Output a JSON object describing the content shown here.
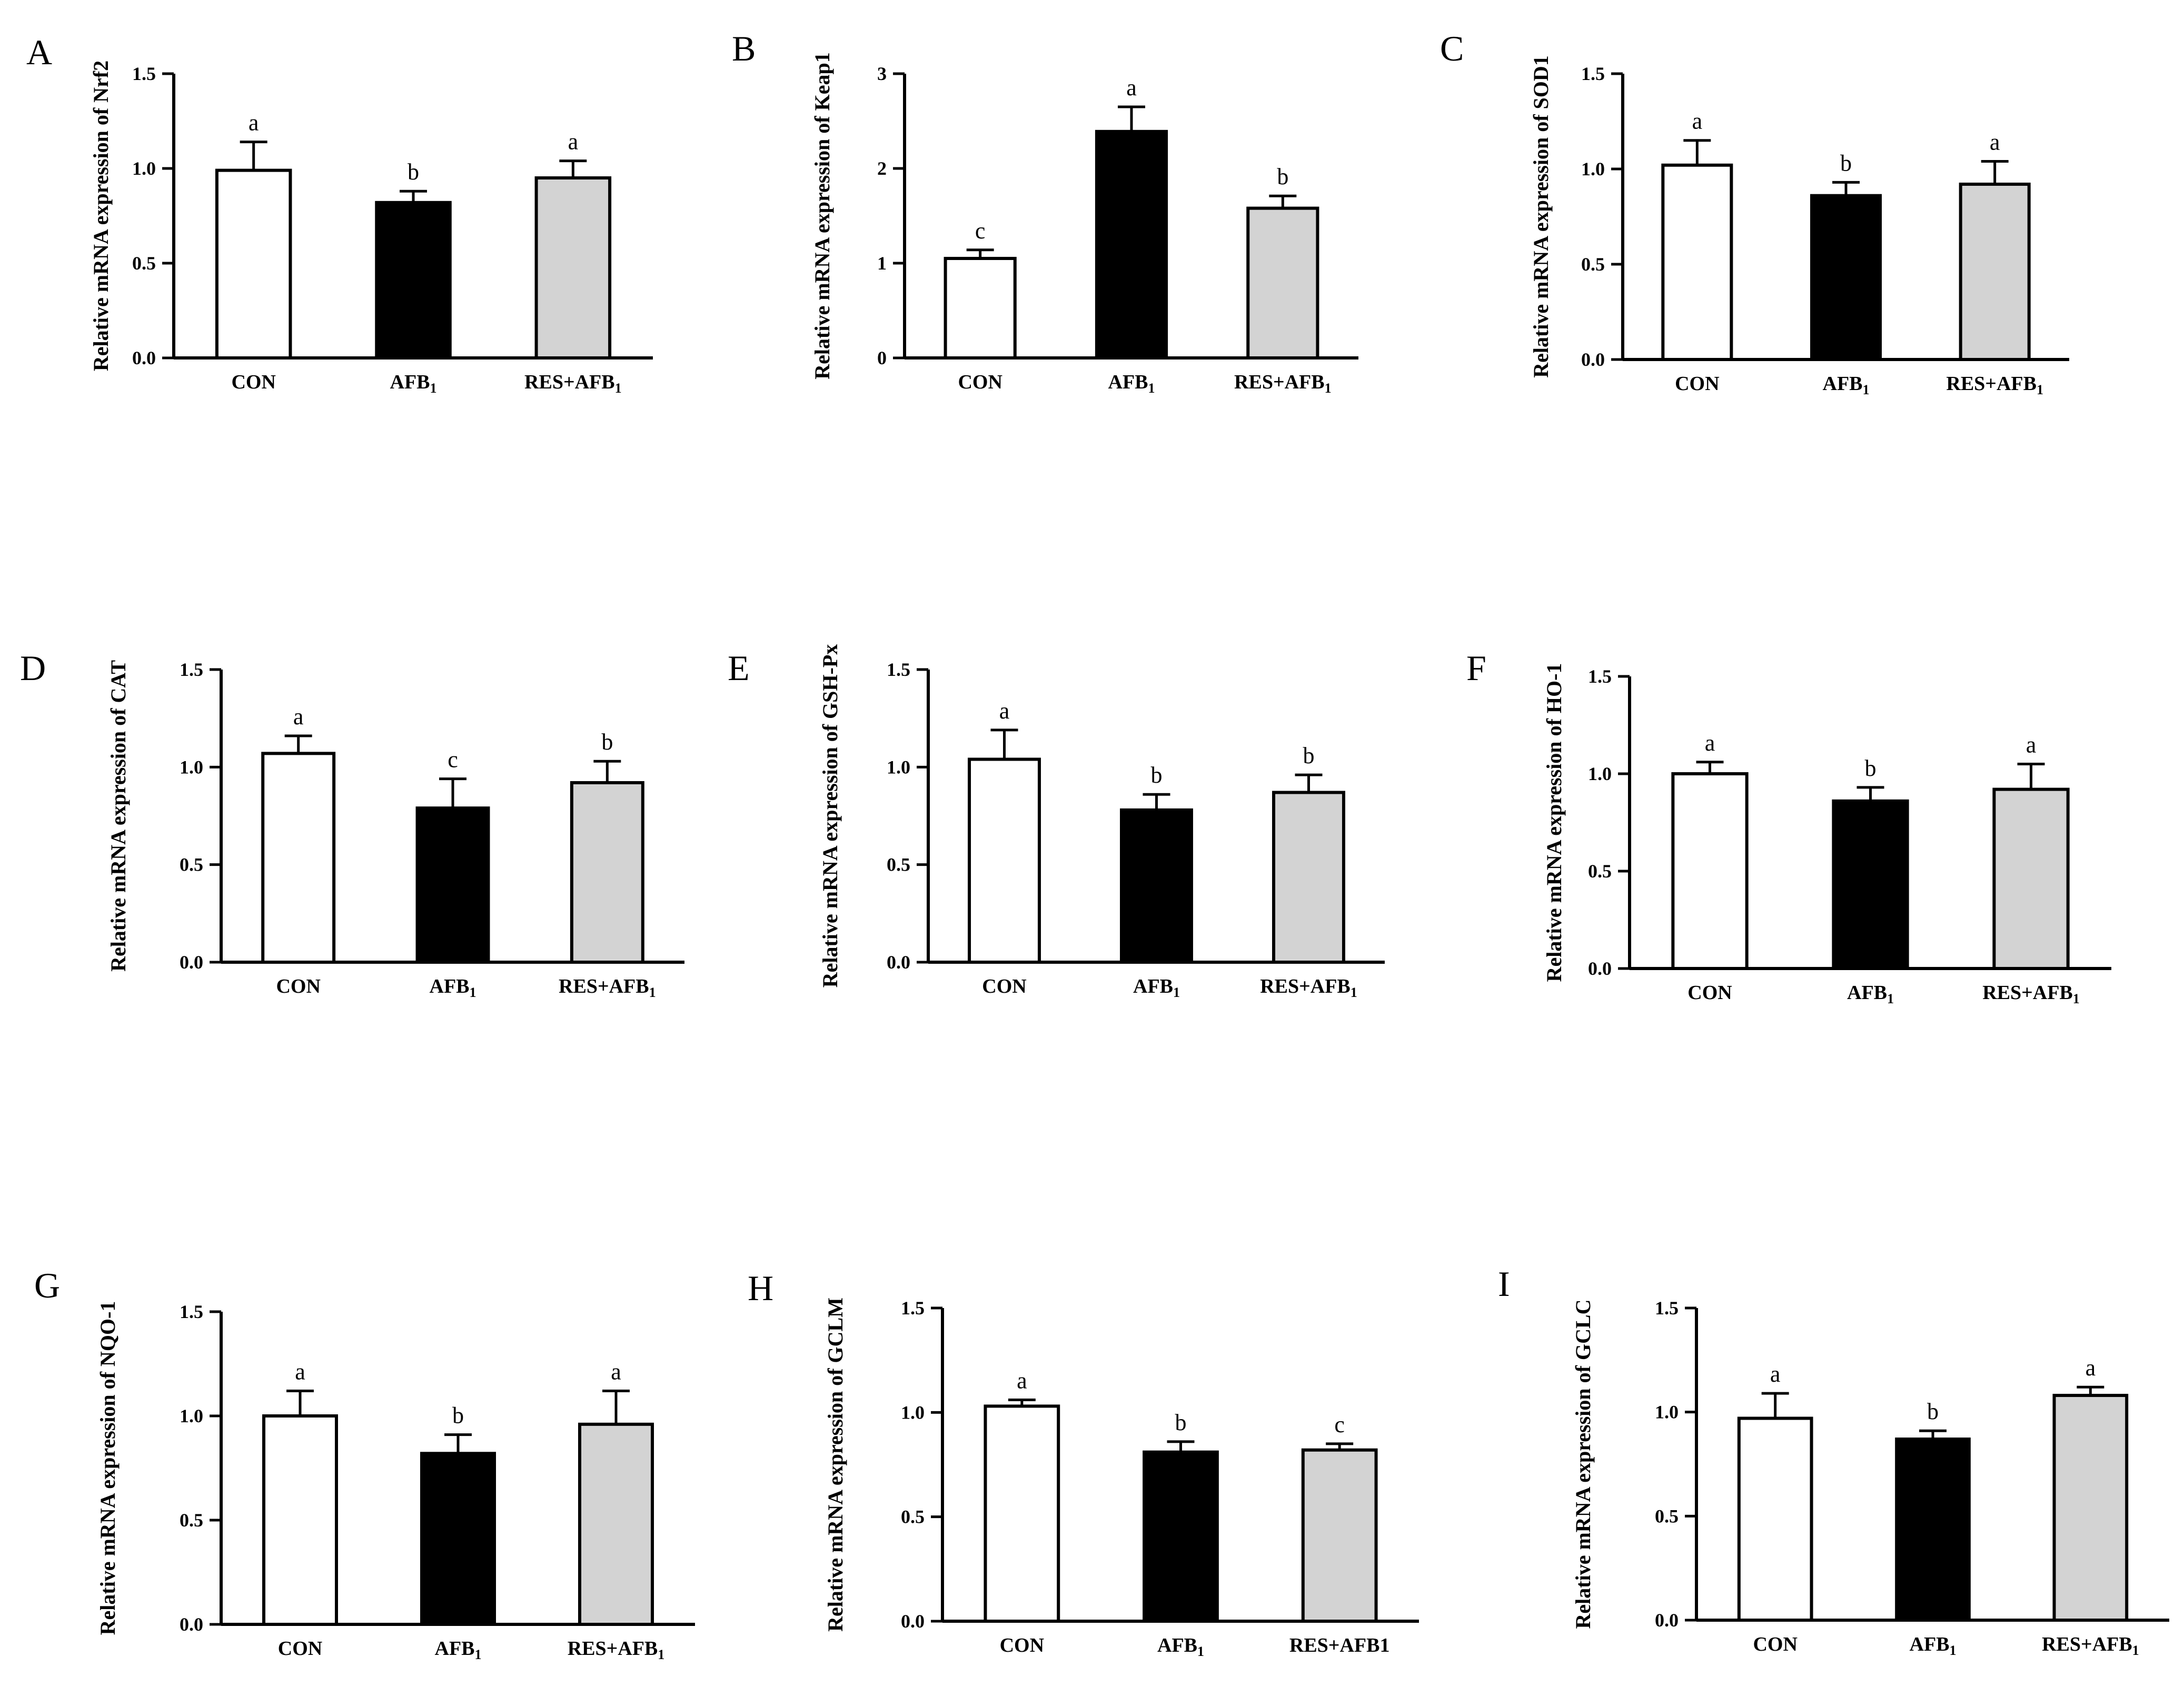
{
  "figure": {
    "panels": [
      "A",
      "B",
      "C",
      "D",
      "E",
      "F",
      "G",
      "H",
      "I"
    ]
  },
  "colors": {
    "CON": "#ffffff",
    "AFB1": "#000000",
    "RES_AFB1": "#d3d3d3",
    "axis": "#000000"
  },
  "chart_data": [
    {
      "panel": "A",
      "type": "bar",
      "title": "",
      "ylabel": "Relative mRNA expression of Nrf2",
      "xlabel": "",
      "categories": [
        "CON",
        "AFB1",
        "RES+AFB1"
      ],
      "category_labels": [
        {
          "main": "CON",
          "sub": ""
        },
        {
          "main": "AFB",
          "sub": "1"
        },
        {
          "main": "RES+AFB",
          "sub": "1"
        }
      ],
      "values": [
        0.99,
        0.82,
        0.95
      ],
      "errors": [
        0.15,
        0.06,
        0.09
      ],
      "significance": [
        "a",
        "b",
        "a"
      ],
      "ylim": [
        0,
        1.5
      ],
      "yticks": [
        0,
        0.5,
        1.0,
        1.5
      ],
      "ytick_labels": [
        "0.0",
        "0.5",
        "1.0",
        "1.5"
      ]
    },
    {
      "panel": "B",
      "type": "bar",
      "title": "",
      "ylabel": "Relative mRNA expression of Keap1",
      "xlabel": "",
      "categories": [
        "CON",
        "AFB1",
        "RES+AFB1"
      ],
      "category_labels": [
        {
          "main": "CON",
          "sub": ""
        },
        {
          "main": "AFB",
          "sub": "1"
        },
        {
          "main": "RES+AFB",
          "sub": "1"
        }
      ],
      "values": [
        1.05,
        2.39,
        1.58
      ],
      "errors": [
        0.09,
        0.26,
        0.13
      ],
      "significance": [
        "c",
        "a",
        "b"
      ],
      "ylim": [
        0,
        3
      ],
      "yticks": [
        0,
        1,
        2,
        3
      ],
      "ytick_labels": [
        "0",
        "1",
        "2",
        "3"
      ]
    },
    {
      "panel": "C",
      "type": "bar",
      "title": "",
      "ylabel": "Relative mRNA expression of SOD1",
      "xlabel": "",
      "categories": [
        "CON",
        "AFB1",
        "RES+AFB1"
      ],
      "category_labels": [
        {
          "main": "CON",
          "sub": ""
        },
        {
          "main": "AFB",
          "sub": "1"
        },
        {
          "main": "RES+AFB",
          "sub": "1"
        }
      ],
      "values": [
        1.02,
        0.86,
        0.92
      ],
      "errors": [
        0.13,
        0.07,
        0.12
      ],
      "significance": [
        "a",
        "b",
        "a"
      ],
      "ylim": [
        0,
        1.5
      ],
      "yticks": [
        0,
        0.5,
        1.0,
        1.5
      ],
      "ytick_labels": [
        "0.0",
        "0.5",
        "1.0",
        "1.5"
      ]
    },
    {
      "panel": "D",
      "type": "bar",
      "title": "",
      "ylabel": "Relative mRNA expression of CAT",
      "xlabel": "",
      "categories": [
        "CON",
        "AFB1",
        "RES+AFB1"
      ],
      "category_labels": [
        {
          "main": "CON",
          "sub": ""
        },
        {
          "main": "AFB",
          "sub": "1"
        },
        {
          "main": "RES+AFB",
          "sub": "1"
        }
      ],
      "values": [
        1.07,
        0.79,
        0.92
      ],
      "errors": [
        0.09,
        0.15,
        0.11
      ],
      "significance": [
        "a",
        "c",
        "b"
      ],
      "ylim": [
        0,
        1.5
      ],
      "yticks": [
        0,
        0.5,
        1.0,
        1.5
      ],
      "ytick_labels": [
        "0.0",
        "0.5",
        "1.0",
        "1.5"
      ]
    },
    {
      "panel": "E",
      "type": "bar",
      "title": "",
      "ylabel": "Relative mRNA expression of GSH-Px",
      "xlabel": "",
      "categories": [
        "CON",
        "AFB1",
        "RES+AFB1"
      ],
      "category_labels": [
        {
          "main": "CON",
          "sub": ""
        },
        {
          "main": "AFB",
          "sub": "1"
        },
        {
          "main": "RES+AFB",
          "sub": "1"
        }
      ],
      "values": [
        1.04,
        0.78,
        0.87
      ],
      "errors": [
        0.15,
        0.08,
        0.09
      ],
      "significance": [
        "a",
        "b",
        "b"
      ],
      "ylim": [
        0,
        1.5
      ],
      "yticks": [
        0,
        0.5,
        1.0,
        1.5
      ],
      "ytick_labels": [
        "0.0",
        "0.5",
        "1.0",
        "1.5"
      ]
    },
    {
      "panel": "F",
      "type": "bar",
      "title": "",
      "ylabel": "Relative mRNA expression of HO-1",
      "xlabel": "",
      "categories": [
        "CON",
        "AFB1",
        "RES+AFB1"
      ],
      "category_labels": [
        {
          "main": "CON",
          "sub": ""
        },
        {
          "main": "AFB",
          "sub": "1"
        },
        {
          "main": "RES+AFB",
          "sub": "1"
        }
      ],
      "values": [
        1.0,
        0.86,
        0.92
      ],
      "errors": [
        0.06,
        0.07,
        0.13
      ],
      "significance": [
        "a",
        "b",
        "a"
      ],
      "ylim": [
        0,
        1.5
      ],
      "yticks": [
        0,
        0.5,
        1.0,
        1.5
      ],
      "ytick_labels": [
        "0.0",
        "0.5",
        "1.0",
        "1.5"
      ]
    },
    {
      "panel": "G",
      "type": "bar",
      "title": "",
      "ylabel": "Relative mRNA expression of NQO-1",
      "xlabel": "",
      "categories": [
        "CON",
        "AFB1",
        "RES+AFB1"
      ],
      "category_labels": [
        {
          "main": "CON",
          "sub": ""
        },
        {
          "main": "AFB",
          "sub": "1"
        },
        {
          "main": "RES+AFB",
          "sub": "1"
        }
      ],
      "values": [
        1.0,
        0.82,
        0.96
      ],
      "errors": [
        0.12,
        0.09,
        0.16
      ],
      "significance": [
        "a",
        "b",
        "a"
      ],
      "ylim": [
        0,
        1.5
      ],
      "yticks": [
        0,
        0.5,
        1.0,
        1.5
      ],
      "ytick_labels": [
        "0.0",
        "0.5",
        "1.0",
        "1.5"
      ]
    },
    {
      "panel": "H",
      "type": "bar",
      "title": "",
      "ylabel": "Relative mRNA expression of GCLM",
      "xlabel": "",
      "categories": [
        "CON",
        "AFB1",
        "RES+AFB1"
      ],
      "category_labels": [
        {
          "main": "CON",
          "sub": ""
        },
        {
          "main": "AFB",
          "sub": "1"
        },
        {
          "main": "RES+AFB1",
          "sub": ""
        }
      ],
      "values": [
        1.03,
        0.81,
        0.82
      ],
      "errors": [
        0.03,
        0.05,
        0.03
      ],
      "significance": [
        "a",
        "b",
        "c"
      ],
      "ylim": [
        0,
        1.5
      ],
      "yticks": [
        0,
        0.5,
        1.0,
        1.5
      ],
      "ytick_labels": [
        "0.0",
        "0.5",
        "1.0",
        "1.5"
      ]
    },
    {
      "panel": "I",
      "type": "bar",
      "title": "",
      "ylabel": "Relative mRNA expression of GCLC",
      "xlabel": "",
      "categories": [
        "CON",
        "AFB1",
        "RES+AFB1"
      ],
      "category_labels": [
        {
          "main": "CON",
          "sub": ""
        },
        {
          "main": "AFB",
          "sub": "1"
        },
        {
          "main": "RES+AFB",
          "sub": "1"
        }
      ],
      "values": [
        0.97,
        0.87,
        1.08
      ],
      "errors": [
        0.12,
        0.04,
        0.04
      ],
      "significance": [
        "a",
        "b",
        "a"
      ],
      "ylim": [
        0,
        1.5
      ],
      "yticks": [
        0,
        0.5,
        1.0,
        1.5
      ],
      "ytick_labels": [
        "0.0",
        "0.5",
        "1.0",
        "1.5"
      ]
    }
  ]
}
